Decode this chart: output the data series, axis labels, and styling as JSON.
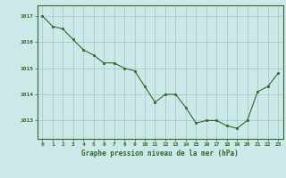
{
  "x": [
    0,
    1,
    2,
    3,
    4,
    5,
    6,
    7,
    8,
    9,
    10,
    11,
    12,
    13,
    14,
    15,
    16,
    17,
    18,
    19,
    20,
    21,
    22,
    23
  ],
  "y": [
    1017.0,
    1016.6,
    1016.5,
    1016.1,
    1015.7,
    1015.5,
    1015.2,
    1015.2,
    1015.0,
    1014.9,
    1014.3,
    1013.7,
    1014.0,
    1014.0,
    1013.5,
    1012.9,
    1013.0,
    1013.0,
    1012.8,
    1012.7,
    1013.0,
    1014.1,
    1014.3,
    1014.8
  ],
  "line_color": "#2d6a2d",
  "marker_color": "#2d6a2d",
  "bg_color": "#cce8e8",
  "grid_color": "#9dc8c8",
  "title": "Graphe pression niveau de la mer (hPa)",
  "title_color": "#2d6a2d",
  "xlabel_ticks": [
    "0",
    "1",
    "2",
    "3",
    "4",
    "5",
    "6",
    "7",
    "8",
    "9",
    "10",
    "11",
    "12",
    "13",
    "14",
    "15",
    "16",
    "17",
    "18",
    "19",
    "20",
    "21",
    "22",
    "23"
  ],
  "yticks": [
    1013,
    1014,
    1015,
    1016,
    1017
  ],
  "ylim": [
    1012.3,
    1017.4
  ],
  "xlim": [
    -0.5,
    23.5
  ]
}
